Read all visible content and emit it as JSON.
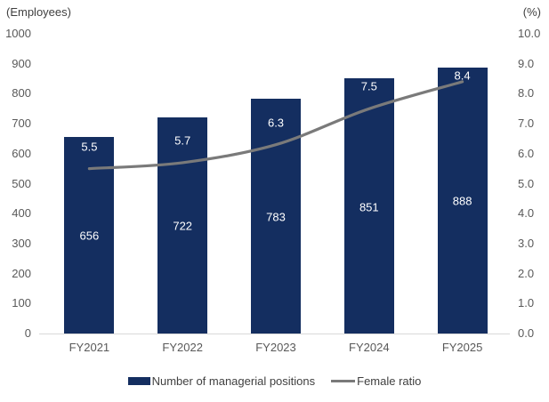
{
  "chart_data": {
    "type": "bar",
    "subtype": "bar-line-combo",
    "title": "",
    "categories": [
      "FY2021",
      "FY2022",
      "FY2023",
      "FY2024",
      "FY2025"
    ],
    "series": [
      {
        "name": "Number of managerial positions",
        "type": "bar",
        "axis": "left",
        "values": [
          656,
          722,
          783,
          851,
          888
        ],
        "color": "#142e60",
        "label_color": "#ffffff"
      },
      {
        "name": "Female ratio",
        "type": "line",
        "axis": "right",
        "values": [
          5.5,
          5.7,
          6.3,
          7.5,
          8.4
        ],
        "color": "#7a7a7a",
        "label_color": "#ffffff"
      }
    ],
    "left_axis": {
      "unit_label": "(Employees)",
      "min": 0,
      "max": 1000,
      "step": 100,
      "tick_labels": [
        "1000",
        "900",
        "800",
        "700",
        "600",
        "500",
        "400",
        "300",
        "200",
        "100",
        "0"
      ]
    },
    "right_axis": {
      "unit_label": "(%)",
      "min": 0,
      "max": 10,
      "step": 1,
      "tick_labels": [
        "10.0",
        "9.0",
        "8.0",
        "7.0",
        "6.0",
        "5.0",
        "4.0",
        "3.0",
        "2.0",
        "1.0",
        "0.0"
      ]
    },
    "grid": false,
    "legend_position": "bottom"
  },
  "colors": {
    "background": "#ffffff",
    "bar": "#142e60",
    "line": "#7a7a7a",
    "axis_text": "#595959",
    "unit_text": "#404040",
    "legend_text": "#404040",
    "axis_line": "#d9d9d9",
    "data_label": "#ffffff"
  }
}
